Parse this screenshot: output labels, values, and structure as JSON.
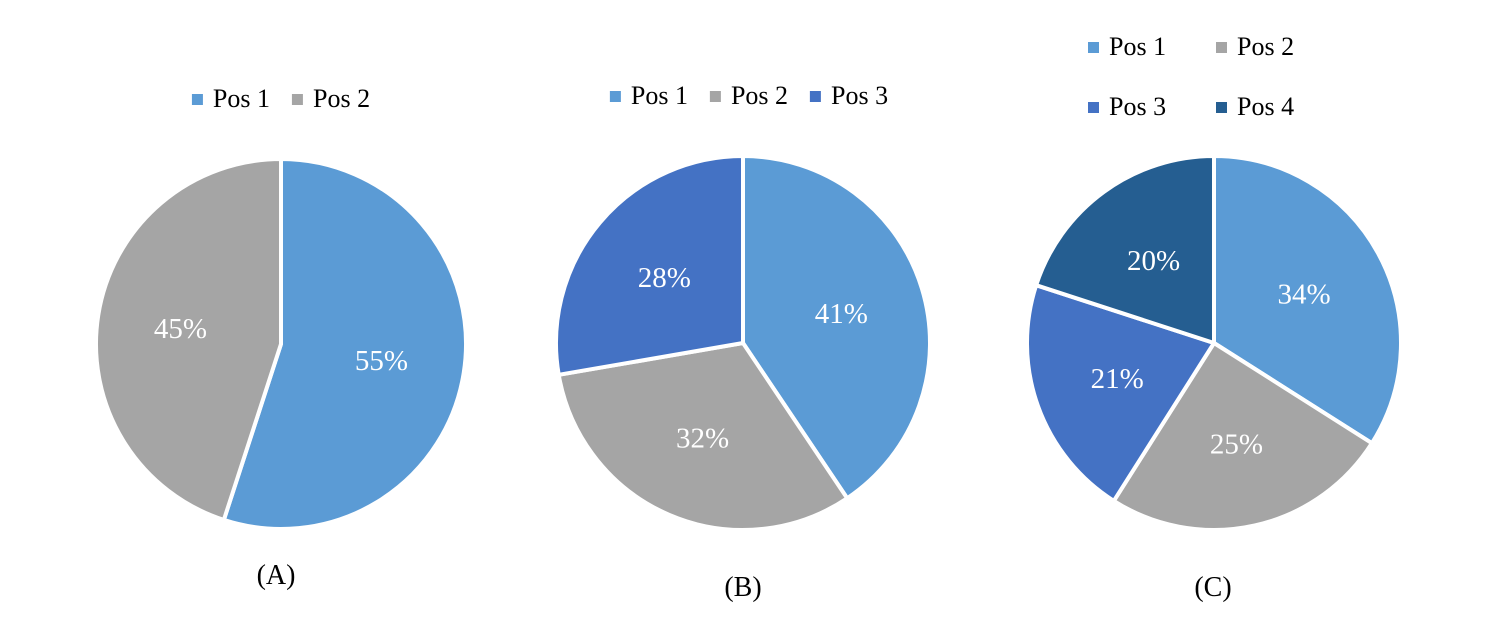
{
  "colors": {
    "Pos 1": "#5B9BD5",
    "Pos 2": "#A5A5A5",
    "Pos 3": "#4472C4",
    "Pos 4": "#255E91"
  },
  "chart_data": [
    {
      "type": "pie",
      "caption": "(A)",
      "legend_placement": "top",
      "categories": [
        "Pos 1",
        "Pos 2"
      ],
      "values": [
        55,
        45
      ],
      "labels": [
        "55%",
        "45%"
      ]
    },
    {
      "type": "pie",
      "caption": "(B)",
      "legend_placement": "top",
      "categories": [
        "Pos 1",
        "Pos 2",
        "Pos 3"
      ],
      "values": [
        41,
        32,
        28
      ],
      "labels": [
        "41%",
        "32%",
        "28%"
      ]
    },
    {
      "type": "pie",
      "caption": "(C)",
      "legend_placement": "top",
      "categories": [
        "Pos 1",
        "Pos 2",
        "Pos 3",
        "Pos 4"
      ],
      "values": [
        34,
        25,
        21,
        20
      ],
      "labels": [
        "34%",
        "25%",
        "21%",
        "20%"
      ]
    }
  ]
}
